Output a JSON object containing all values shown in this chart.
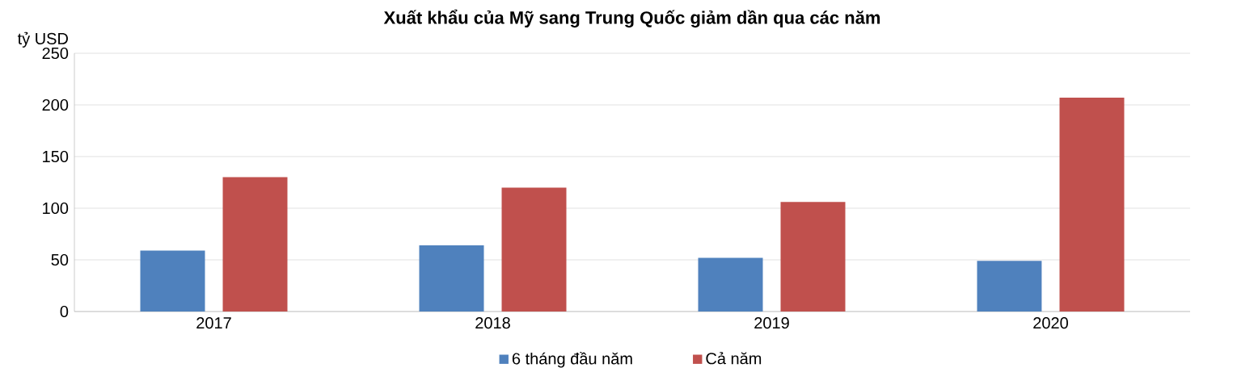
{
  "chart_data": {
    "type": "bar",
    "title": "Xuất khẩu của Mỹ sang Trung Quốc giảm dần qua các năm",
    "ylabel": "tỷ USD",
    "categories": [
      "2017",
      "2018",
      "2019",
      "2020"
    ],
    "series": [
      {
        "name": "6 tháng đầu năm",
        "color": "#4f81bd",
        "values": [
          59,
          64,
          52,
          49
        ]
      },
      {
        "name": "Cả năm",
        "color": "#c0504d",
        "values": [
          130,
          120,
          106,
          207
        ]
      }
    ],
    "ylim": [
      0,
      250
    ],
    "yticks": [
      0,
      50,
      100,
      150,
      200,
      250
    ],
    "grid": "y",
    "legend": "bottom"
  }
}
